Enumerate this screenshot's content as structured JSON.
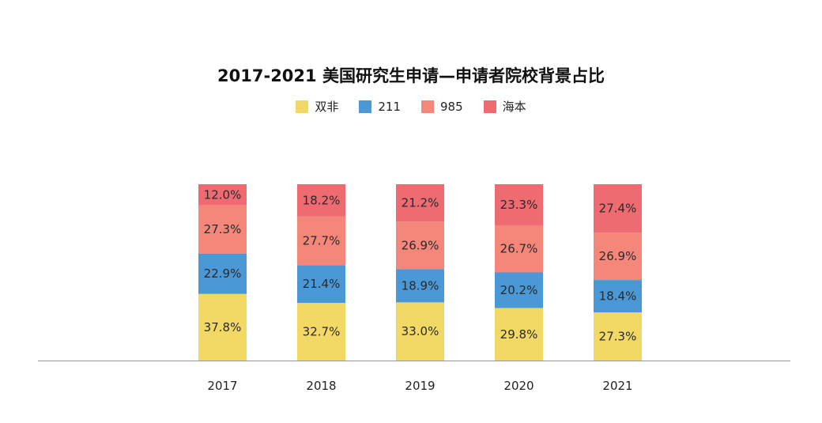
{
  "chart_data": {
    "type": "bar",
    "stacked": true,
    "title": "2017-2021 美国研究生申请—申请者院校背景占比",
    "categories": [
      "2017",
      "2018",
      "2019",
      "2020",
      "2021"
    ],
    "series": [
      {
        "name": "双非",
        "color": "#F2D864",
        "values": [
          37.8,
          32.7,
          33.0,
          29.8,
          27.3
        ]
      },
      {
        "name": "211",
        "color": "#4A98D6",
        "values": [
          22.9,
          21.4,
          18.9,
          20.2,
          18.4
        ]
      },
      {
        "name": "985",
        "color": "#F4877A",
        "values": [
          27.3,
          27.7,
          26.9,
          26.7,
          26.9
        ]
      },
      {
        "name": "海本",
        "color": "#EE6B72",
        "values": [
          12.0,
          18.2,
          21.2,
          23.3,
          27.4
        ]
      }
    ],
    "value_format": "%",
    "legend_position": "top",
    "grid": false
  }
}
